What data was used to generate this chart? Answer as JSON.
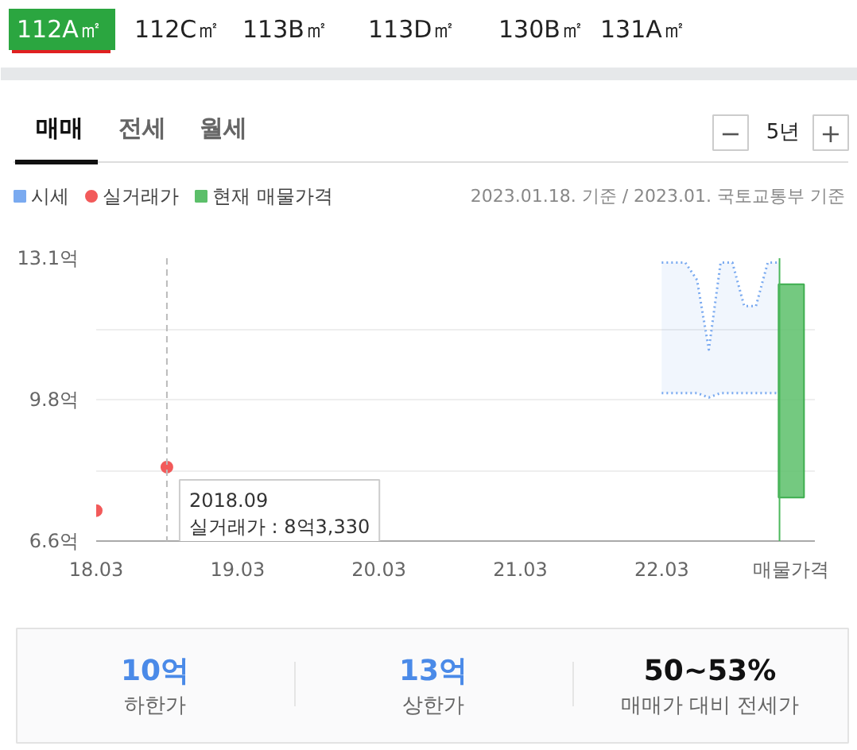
{
  "chart_data": [
    {
      "type": "other",
      "annotations": [
        "112A㎡",
        "112C㎡",
        "113B㎡",
        "113D㎡",
        "130B㎡",
        "131A㎡",
        "매매",
        "전세",
        "월세",
        "−",
        "5년",
        "+"
      ]
    },
    {
      "type": "line",
      "legend": "top left",
      "grid": "y",
      "annotations": [
        "2023.01.18. 기준 / 2023.01. 국토교통부 기준",
        {
          "text": "2018.09\n실거래가 : 8억3,330",
          "x": "2018-09",
          "y": 8.3
        }
      ],
      "xlim": [
        "2018-03",
        "2023-04"
      ],
      "xticks": [
        {
          "value": "2018-03",
          "label": "18.03"
        },
        {
          "value": "2019-03",
          "label": "19.03"
        },
        {
          "value": "2020-03",
          "label": "20.03"
        },
        {
          "value": "2021-03",
          "label": "21.03"
        },
        {
          "value": "2022-03",
          "label": "22.03"
        },
        {
          "value": "2023-02",
          "label": "매물가격"
        }
      ],
      "ylim": [
        6.6,
        13.1
      ],
      "yticks": [
        {
          "value": 6.6,
          "label": "6.6억"
        },
        {
          "value": 8.225,
          "label": null
        },
        {
          "value": 9.85,
          "label": "9.8억"
        },
        {
          "value": 11.475,
          "label": null
        },
        {
          "value": 13.1,
          "label": "13.1억"
        }
      ],
      "ref_lines": [
        {
          "axis": "x",
          "value": "2018-09",
          "color": "#bbbbbb",
          "line_style": "dashed"
        },
        {
          "axis": "x",
          "value": "2023-01",
          "color": "#4cb85c"
        }
      ],
      "series": [
        {
          "name": "시세",
          "type": "line",
          "color": "#7aaaf0",
          "line_style": "dotted",
          "x": [
            "2022-03",
            "2022-04",
            "2022-05",
            "2022-06",
            "2022-07",
            "2022-08",
            "2022-09",
            "2022-10",
            "2022-11",
            "2022-12",
            "2023-01"
          ],
          "values": [
            13.0,
            13.0,
            13.0,
            12.6,
            11.0,
            13.0,
            13.0,
            12.0,
            12.0,
            13.0,
            13.0
          ],
          "upper": [
            13.0,
            13.0,
            13.0,
            12.6,
            11.0,
            13.0,
            13.0,
            12.0,
            12.0,
            13.0,
            13.0
          ],
          "lower": [
            10.0,
            10.0,
            10.0,
            10.0,
            9.9,
            10.0,
            10.0,
            10.0,
            10.0,
            10.0,
            10.0
          ]
        },
        {
          "type": "line",
          "color": "#7aaaf0",
          "line_style": "dotted",
          "x": [
            "2022-03",
            "2022-04",
            "2022-05",
            "2022-06",
            "2022-07",
            "2022-08",
            "2022-09",
            "2022-10",
            "2022-11",
            "2022-12",
            "2023-01"
          ],
          "values": [
            10.0,
            10.0,
            10.0,
            10.0,
            9.9,
            10.0,
            10.0,
            10.0,
            10.0,
            10.0,
            10.0
          ]
        },
        {
          "name": "실거래가",
          "type": "scatter",
          "marker": "circle",
          "color": "#f25a5a",
          "x": [
            "2018-03",
            "2018-09"
          ],
          "values": [
            7.3,
            8.3
          ]
        },
        {
          "name": "현재 매물가격",
          "type": "bar",
          "color": "#5cbf6a",
          "x": [
            "2023-02"
          ],
          "base": [
            7.6
          ],
          "values": [
            4.9
          ]
        }
      ]
    },
    {
      "type": "other",
      "annotations": [
        "10억",
        "하한가",
        "13억",
        "상한가",
        "50~53%",
        "매매가 대비 전세가"
      ]
    }
  ]
}
